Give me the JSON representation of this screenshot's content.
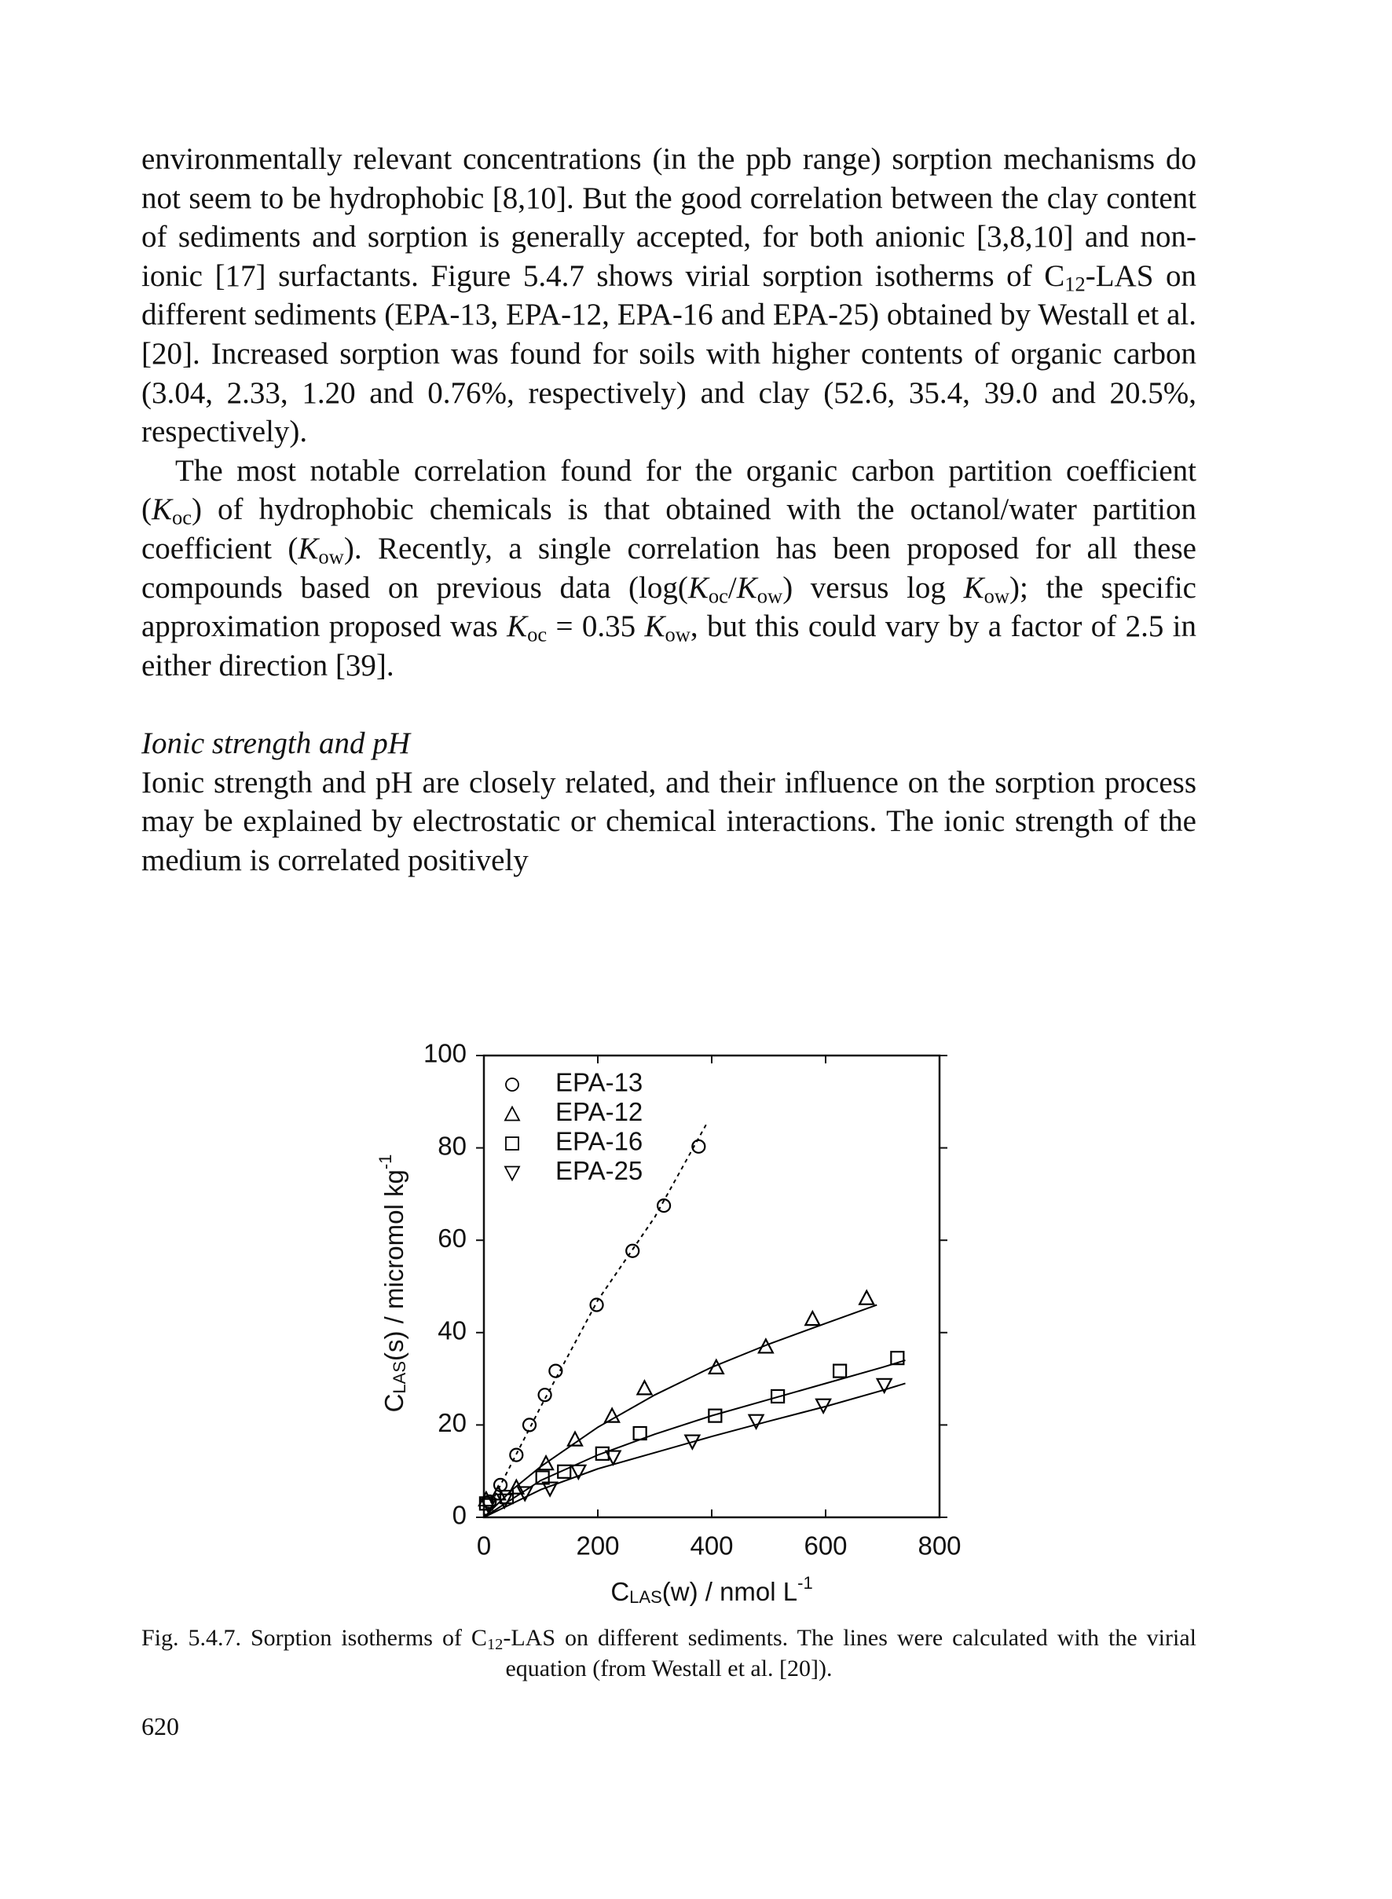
{
  "body": [
    [
      "environmentally relevant concentrations (in the ppb range) sorption mechanisms do not seem to be hydrophobic [8,10]. But the good correlation between the clay content of sediments and sorption is generally accepted, for both anionic [3,8,10] and non-ionic [17] surfactants. Figure 5.4.7 shows virial sorption isotherms of C",
      {
        "sub": "12"
      },
      "-LAS on different sediments (EPA-13, EPA-12, EPA-16 and EPA-25) obtained by Westall et al. [20]. Increased sorption was found for soils with higher contents of organic carbon (3.04, 2.33, 1.20 and 0.76%, respectively) and clay (52.6, 35.4, 39.0 and 20.5%, respectively)."
    ],
    [
      "The most notable correlation found for the organic carbon partition coefficient (",
      {
        "i": "K"
      },
      {
        "sub": "oc"
      },
      ") of hydrophobic chemicals is that obtained with the octanol/water partition coefficient (",
      {
        "i": "K"
      },
      {
        "sub": "ow"
      },
      "). Recently, a single correlation has been proposed for all these compounds based on previous data (log(",
      {
        "i": "K"
      },
      {
        "sub": "oc"
      },
      "/",
      {
        "i": "K"
      },
      {
        "sub": "ow"
      },
      ") versus log ",
      {
        "i": "K"
      },
      {
        "sub": "ow"
      },
      "); the specific approximation proposed was ",
      {
        "i": "K"
      },
      {
        "sub": "oc"
      },
      " = 0.35 ",
      {
        "i": "K"
      },
      {
        "sub": "ow"
      },
      ", but this could vary by a factor of 2.5 in either direction [39]."
    ]
  ],
  "section": {
    "heading": "Ionic strength and pH",
    "body": [
      "Ionic strength and pH are closely related, and their influence on the sorption process may be explained by electrostatic or chemical interactions. The ionic strength of the medium is correlated positively"
    ]
  },
  "chart_data": {
    "type": "scatter",
    "xlabel": [
      "C",
      {
        "sub": "LAS"
      },
      "(w) / nmol L",
      {
        "sup": "-1"
      }
    ],
    "ylabel": [
      "C",
      {
        "sub": "LAS"
      },
      "(s) / micromol kg",
      {
        "sup": "-1"
      }
    ],
    "xlim": [
      0,
      800
    ],
    "ylim": [
      0,
      100
    ],
    "xticks": [
      0,
      200,
      400,
      600,
      800
    ],
    "yticks": [
      0,
      20,
      40,
      60,
      80,
      100
    ],
    "legend": "upper left",
    "series": [
      {
        "name": "EPA-13",
        "color": "#000000",
        "marker": "circle",
        "line_style": "dashed",
        "x": [
          10,
          29,
          57,
          80,
          107,
          126,
          198,
          261,
          316,
          377
        ],
        "y": [
          3.4,
          7,
          13.5,
          20,
          26.5,
          31.7,
          46,
          57.7,
          67.5,
          80.3
        ],
        "fit_x": [
          0,
          100,
          200,
          300,
          390
        ],
        "fit_y": [
          0,
          24,
          47,
          65,
          85
        ]
      },
      {
        "name": "EPA-12",
        "color": "#000000",
        "marker": "triangle",
        "line_style": "solid",
        "x": [
          4,
          25,
          57,
          109,
          160,
          225,
          282,
          408,
          495,
          577,
          672
        ],
        "y": [
          3.9,
          5.2,
          6.5,
          11.7,
          16.9,
          22,
          28,
          32.5,
          37,
          43,
          47.5
        ],
        "fit_x": [
          0,
          50,
          100,
          200,
          300,
          400,
          500,
          600,
          690
        ],
        "fit_y": [
          0,
          6,
          11,
          19.5,
          26.5,
          32.5,
          37.5,
          42,
          46
        ]
      },
      {
        "name": "EPA-16",
        "color": "#000000",
        "marker": "square",
        "line_style": "solid",
        "x": [
          4,
          40,
          103,
          141,
          208,
          274,
          406,
          516,
          625,
          726
        ],
        "y": [
          3,
          4.4,
          8.6,
          9.9,
          13.8,
          18.2,
          22,
          26.2,
          31.7,
          34.5
        ],
        "fit_x": [
          0,
          100,
          200,
          300,
          400,
          500,
          600,
          700,
          740
        ],
        "fit_y": [
          0,
          8,
          13.5,
          18,
          22,
          25.5,
          29,
          32.5,
          34
        ]
      },
      {
        "name": "EPA-25",
        "color": "#000000",
        "marker": "triangle-down",
        "line_style": "solid",
        "x": [
          8,
          36,
          72,
          116,
          166,
          227,
          366,
          478,
          596,
          703
        ],
        "y": [
          2.6,
          3.6,
          5.2,
          6.2,
          9.9,
          13,
          16.4,
          20.8,
          24.2,
          28.6
        ],
        "fit_x": [
          0,
          100,
          200,
          300,
          400,
          500,
          600,
          700,
          740
        ],
        "fit_y": [
          0,
          6,
          10.5,
          14,
          17.5,
          20.8,
          24,
          27.5,
          29
        ]
      }
    ]
  },
  "caption": [
    "Fig. 5.4.7. Sorption isotherms of C",
    {
      "sub": "12"
    },
    "-LAS on different sediments. The lines were calculated with the virial equation (from Westall et al. [20])."
  ],
  "page_number": "620"
}
